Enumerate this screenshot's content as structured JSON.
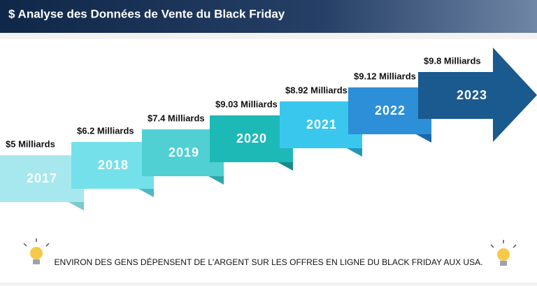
{
  "header": {
    "title": "$ Analyse des Données de Vente du Black Friday"
  },
  "steps": [
    {
      "year": "2017",
      "label": "$5 Milliards"
    },
    {
      "year": "2018",
      "label": "$6.2 Milliards"
    },
    {
      "year": "2019",
      "label": "$7.4 Milliards"
    },
    {
      "year": "2020",
      "label": "$9.03 Milliards"
    },
    {
      "year": "2021",
      "label": "$8.92 Milliards"
    },
    {
      "year": "2022",
      "label": "$9.12 Milliards"
    },
    {
      "year": "2023",
      "label": "$9.8 Milliards"
    }
  ],
  "footer": {
    "note": "ENVIRON DES GENS DÉPENSENT DE L'ARGENT SUR LES OFFRES EN LIGNE DU BLACK FRIDAY AUX USA."
  }
}
